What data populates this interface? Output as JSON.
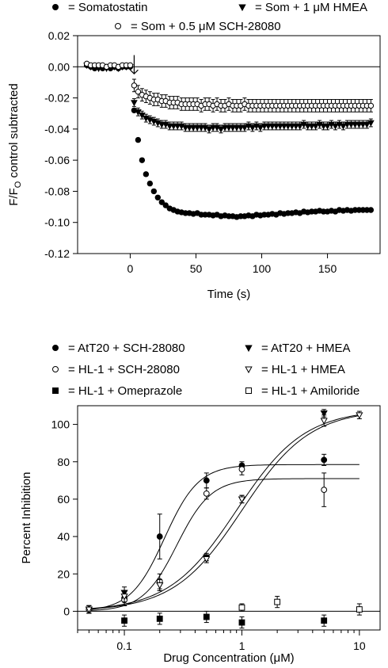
{
  "chart_data": [
    {
      "type": "scatter",
      "title": "",
      "xlabel": "Time (s)",
      "ylabel_main": "F/F",
      "ylabel_sub": "O",
      "ylabel_rest": " control subtracted",
      "xlim": [
        -40,
        190
      ],
      "ylim": [
        -0.12,
        0.02
      ],
      "x_ticks": [
        0,
        50,
        100,
        150
      ],
      "y_ticks": [
        0.02,
        0.0,
        -0.02,
        -0.04,
        -0.06,
        -0.08,
        -0.1,
        -0.12
      ],
      "y_tick_labels": [
        "0.02",
        "0.00",
        "-0.02",
        "-0.04",
        "-0.06",
        "-0.08",
        "-0.10",
        "-0.12"
      ],
      "grid": false,
      "zero_line": 0,
      "stimulus_arrow_x": 3,
      "legend": {
        "placement": "top",
        "entries": [
          {
            "marker": "circle-filled",
            "label": "= Somatostatin"
          },
          {
            "marker": "triangle-down-filled",
            "label": "= Som + 1 μM HMEA"
          },
          {
            "marker": "circle-open",
            "label": "= Som + 0.5 μM SCH-28080"
          }
        ]
      },
      "series": [
        {
          "name": "Somatostatin",
          "marker": "circle-filled",
          "x": [
            -33,
            -30,
            -27,
            -24,
            -21,
            -18,
            -15,
            -12,
            -9,
            -6,
            -3,
            0,
            3,
            6,
            9,
            12,
            15,
            18,
            21,
            24,
            27,
            30,
            33,
            36,
            39,
            42,
            45,
            48,
            51,
            54,
            57,
            60,
            63,
            66,
            69,
            72,
            75,
            78,
            81,
            84,
            87,
            90,
            93,
            96,
            99,
            102,
            105,
            108,
            111,
            114,
            117,
            120,
            123,
            126,
            129,
            132,
            135,
            138,
            141,
            144,
            147,
            150,
            153,
            156,
            159,
            162,
            165,
            168,
            171,
            174,
            177,
            180,
            183
          ],
          "y": [
            0.001,
            0.0,
            -0.001,
            0.0,
            -0.001,
            0.0,
            -0.001,
            0.0,
            -0.001,
            0.0,
            0.0,
            0.0,
            -0.028,
            -0.047,
            -0.06,
            -0.069,
            -0.075,
            -0.08,
            -0.084,
            -0.087,
            -0.089,
            -0.091,
            -0.092,
            -0.093,
            -0.0935,
            -0.094,
            -0.094,
            -0.0945,
            -0.094,
            -0.095,
            -0.095,
            -0.095,
            -0.0955,
            -0.095,
            -0.096,
            -0.0955,
            -0.096,
            -0.096,
            -0.0965,
            -0.096,
            -0.096,
            -0.0955,
            -0.096,
            -0.095,
            -0.0955,
            -0.095,
            -0.095,
            -0.0945,
            -0.095,
            -0.094,
            -0.0945,
            -0.094,
            -0.094,
            -0.0935,
            -0.094,
            -0.093,
            -0.0935,
            -0.093,
            -0.093,
            -0.0925,
            -0.093,
            -0.093,
            -0.0925,
            -0.093,
            -0.092,
            -0.0925,
            -0.092,
            -0.0925,
            -0.092,
            -0.092,
            -0.092,
            -0.092,
            -0.092
          ],
          "err": 0.0012
        },
        {
          "name": "Som + 1 μM HMEA",
          "marker": "triangle-down-filled",
          "x": [
            -33,
            -30,
            -27,
            -24,
            -21,
            -18,
            -15,
            -12,
            -9,
            -6,
            -3,
            0,
            3,
            6,
            9,
            12,
            15,
            18,
            21,
            24,
            27,
            30,
            33,
            36,
            39,
            42,
            45,
            48,
            51,
            54,
            57,
            60,
            63,
            66,
            69,
            72,
            75,
            78,
            81,
            84,
            87,
            90,
            93,
            96,
            99,
            102,
            105,
            108,
            111,
            114,
            117,
            120,
            123,
            126,
            129,
            132,
            135,
            138,
            141,
            144,
            147,
            150,
            153,
            156,
            159,
            162,
            165,
            168,
            171,
            174,
            177,
            180,
            183
          ],
          "y": [
            0.001,
            0.0,
            0.0,
            -0.001,
            0.0,
            -0.001,
            0.0,
            0.0,
            -0.001,
            0.0,
            0.0,
            0.0,
            -0.023,
            -0.029,
            -0.031,
            -0.033,
            -0.034,
            -0.035,
            -0.036,
            -0.037,
            -0.037,
            -0.038,
            -0.038,
            -0.038,
            -0.038,
            -0.039,
            -0.039,
            -0.039,
            -0.039,
            -0.039,
            -0.039,
            -0.04,
            -0.039,
            -0.039,
            -0.04,
            -0.039,
            -0.039,
            -0.039,
            -0.039,
            -0.039,
            -0.039,
            -0.038,
            -0.039,
            -0.038,
            -0.039,
            -0.038,
            -0.038,
            -0.038,
            -0.038,
            -0.038,
            -0.038,
            -0.038,
            -0.038,
            -0.038,
            -0.038,
            -0.037,
            -0.038,
            -0.038,
            -0.038,
            -0.037,
            -0.038,
            -0.038,
            -0.037,
            -0.038,
            -0.037,
            -0.038,
            -0.037,
            -0.037,
            -0.037,
            -0.037,
            -0.037,
            -0.037,
            -0.036
          ],
          "err": 0.0025
        },
        {
          "name": "Som + 0.5 μM SCH-28080",
          "marker": "circle-open",
          "x": [
            -33,
            -30,
            -27,
            -24,
            -21,
            -18,
            -15,
            -12,
            -9,
            -6,
            -3,
            0,
            3,
            6,
            9,
            12,
            15,
            18,
            21,
            24,
            27,
            30,
            33,
            36,
            39,
            42,
            45,
            48,
            51,
            54,
            57,
            60,
            63,
            66,
            69,
            72,
            75,
            78,
            81,
            84,
            87,
            90,
            93,
            96,
            99,
            102,
            105,
            108,
            111,
            114,
            117,
            120,
            123,
            126,
            129,
            132,
            135,
            138,
            141,
            144,
            147,
            150,
            153,
            156,
            159,
            162,
            165,
            168,
            171,
            174,
            177,
            180,
            183
          ],
          "y": [
            0.002,
            0.001,
            0.001,
            0.001,
            0.001,
            0.0,
            0.001,
            0.001,
            0.0,
            0.001,
            0.001,
            0.001,
            -0.012,
            -0.016,
            -0.018,
            -0.019,
            -0.02,
            -0.021,
            -0.021,
            -0.022,
            -0.022,
            -0.023,
            -0.023,
            -0.023,
            -0.024,
            -0.024,
            -0.024,
            -0.024,
            -0.024,
            -0.025,
            -0.024,
            -0.024,
            -0.025,
            -0.024,
            -0.025,
            -0.025,
            -0.024,
            -0.025,
            -0.025,
            -0.025,
            -0.024,
            -0.025,
            -0.025,
            -0.025,
            -0.025,
            -0.025,
            -0.025,
            -0.025,
            -0.025,
            -0.025,
            -0.025,
            -0.025,
            -0.025,
            -0.025,
            -0.025,
            -0.025,
            -0.025,
            -0.025,
            -0.025,
            -0.025,
            -0.025,
            -0.025,
            -0.025,
            -0.025,
            -0.025,
            -0.025,
            -0.025,
            -0.025,
            -0.025,
            -0.025,
            -0.025,
            -0.025,
            -0.025
          ],
          "err": 0.004
        }
      ]
    },
    {
      "type": "scatter",
      "title": "",
      "xlabel": "Drug Concentration (μM)",
      "ylabel": "Percent Inhibition",
      "x_scale": "log",
      "xlim": [
        0.04,
        15
      ],
      "ylim": [
        -10,
        110
      ],
      "x_ticks": [
        0.1,
        1,
        10
      ],
      "x_tick_labels": [
        "0.1",
        "1",
        "10"
      ],
      "y_ticks": [
        0,
        20,
        40,
        60,
        80,
        100
      ],
      "y_tick_labels": [
        "0",
        "20",
        "40",
        "60",
        "80",
        "100"
      ],
      "grid": false,
      "zero_line": 0,
      "legend": {
        "placement": "top",
        "entries": [
          {
            "marker": "circle-filled",
            "label": "= AtT20 + SCH-28080"
          },
          {
            "marker": "triangle-down-filled",
            "label": "= AtT20 + HMEA"
          },
          {
            "marker": "circle-open",
            "label": "= HL-1 + SCH-28080"
          },
          {
            "marker": "triangle-down-open",
            "label": "= HL-1 + HMEA"
          },
          {
            "marker": "square-filled",
            "label": "= HL-1 + Omeprazole"
          },
          {
            "marker": "square-open",
            "label": "= HL-1 + Amiloride"
          }
        ]
      },
      "series": [
        {
          "name": "AtT20 + SCH-28080",
          "marker": "circle-filled",
          "x": [
            0.05,
            0.1,
            0.2,
            0.5,
            1,
            5
          ],
          "y": [
            1,
            7,
            40,
            70,
            78,
            81
          ],
          "err": [
            2,
            4,
            12,
            4,
            2,
            3
          ],
          "fit": {
            "bottom": 0,
            "top": 78.5,
            "ec50": 0.22,
            "hill": 3.0
          }
        },
        {
          "name": "AtT20 + HMEA",
          "marker": "triangle-down-filled",
          "x": [
            0.05,
            0.1,
            0.2,
            0.5,
            1,
            5
          ],
          "y": [
            1,
            10,
            14,
            29,
            60,
            106
          ],
          "err": [
            2,
            3,
            3,
            2,
            2,
            2
          ],
          "fit": {
            "bottom": 0,
            "top": 108,
            "ec50": 0.9,
            "hill": 1.5
          }
        },
        {
          "name": "HL-1 + SCH-28080",
          "marker": "circle-open",
          "x": [
            0.05,
            0.1,
            0.2,
            0.5,
            1,
            5
          ],
          "y": [
            1,
            6,
            16,
            63,
            76,
            65
          ],
          "err": [
            2,
            3,
            4,
            3,
            3,
            9
          ],
          "fit": {
            "bottom": 0,
            "top": 71,
            "ec50": 0.28,
            "hill": 3.0
          }
        },
        {
          "name": "HL-1 + HMEA",
          "marker": "triangle-down-open",
          "x": [
            0.05,
            0.1,
            0.2,
            0.5,
            1,
            5,
            10
          ],
          "y": [
            1,
            8,
            14,
            28,
            60,
            102,
            105
          ],
          "err": [
            2,
            3,
            3,
            2,
            2,
            3,
            2
          ],
          "fit": {
            "bottom": 0,
            "top": 108,
            "ec50": 1.0,
            "hill": 1.5
          }
        },
        {
          "name": "HL-1 + Omeprazole",
          "marker": "square-filled",
          "x": [
            0.1,
            0.2,
            0.5,
            1,
            5
          ],
          "y": [
            -5,
            -4,
            -3,
            -6,
            -5
          ],
          "err": [
            3,
            3,
            3,
            3,
            3
          ]
        },
        {
          "name": "HL-1 + Amiloride",
          "marker": "square-open",
          "x": [
            1,
            2,
            10
          ],
          "y": [
            2,
            5,
            1
          ],
          "err": [
            2,
            3,
            3
          ]
        }
      ]
    }
  ]
}
